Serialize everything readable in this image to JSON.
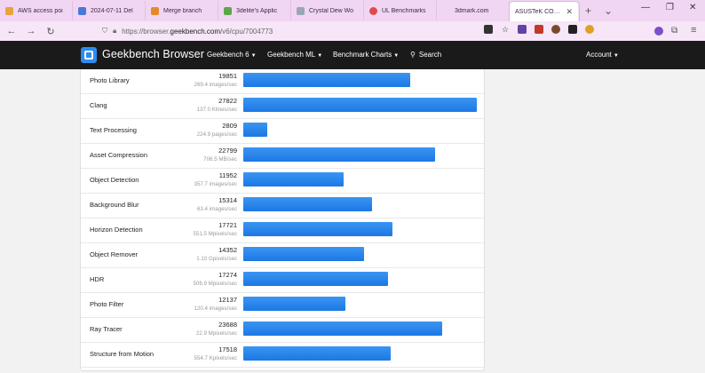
{
  "browser": {
    "tabs": [
      {
        "label": "AWS access poi",
        "color": "#e8a33c"
      },
      {
        "label": "2024-07-11 Del",
        "color": "#4a78d8"
      },
      {
        "label": "Merge branch",
        "color": "#e6892d"
      },
      {
        "label": "3delite's Applic",
        "color": "#5aa84b"
      },
      {
        "label": "Crystal Dew Wo",
        "color": "#9aa6b4"
      },
      {
        "label": "UL Benchmarks",
        "color": "#e04a4a"
      },
      {
        "label": "3dmark.com",
        "color": "#cfcfcf"
      },
      {
        "label": "ASUSTeK COMPUTER",
        "color": "#ffffff",
        "active": true
      }
    ],
    "url_prefix": "https://browser.",
    "url_domain": "geekbench.com",
    "url_path": "/v6/cpu/7004773"
  },
  "header": {
    "brand": "Geekbench Browser",
    "menu": {
      "geekbench6": "Geekbench 6",
      "geekbenchml": "Geekbench ML",
      "charts": "Benchmark Charts",
      "search": "Search",
      "account": "Account"
    }
  },
  "results": {
    "max_score": 27822,
    "rows": [
      {
        "name": "Photo Library",
        "score": "19851",
        "rate": "269.4 images/sec",
        "value": 19851
      },
      {
        "name": "Clang",
        "score": "27822",
        "rate": "137.0 Klines/sec",
        "value": 27822
      },
      {
        "name": "Text Processing",
        "score": "2809",
        "rate": "224.9 pages/sec",
        "value": 2809
      },
      {
        "name": "Asset Compression",
        "score": "22799",
        "rate": "706.5 MB/sec",
        "value": 22799
      },
      {
        "name": "Object Detection",
        "score": "11952",
        "rate": "357.7 images/sec",
        "value": 11952
      },
      {
        "name": "Background Blur",
        "score": "15314",
        "rate": "63.4 images/sec",
        "value": 15314
      },
      {
        "name": "Horizon Detection",
        "score": "17721",
        "rate": "551.5 Mpixels/sec",
        "value": 17721
      },
      {
        "name": "Object Remover",
        "score": "14352",
        "rate": "1.10 Gpixels/sec",
        "value": 14352
      },
      {
        "name": "HDR",
        "score": "17274",
        "rate": "506.9 Mpixels/sec",
        "value": 17274
      },
      {
        "name": "Photo Filter",
        "score": "12137",
        "rate": "120.4 images/sec",
        "value": 12137
      },
      {
        "name": "Ray Tracer",
        "score": "23688",
        "rate": "22.9 Mpixels/sec",
        "value": 23688
      },
      {
        "name": "Structure from Motion",
        "score": "17518",
        "rate": "554.7 Kpixels/sec",
        "value": 17518
      }
    ]
  }
}
